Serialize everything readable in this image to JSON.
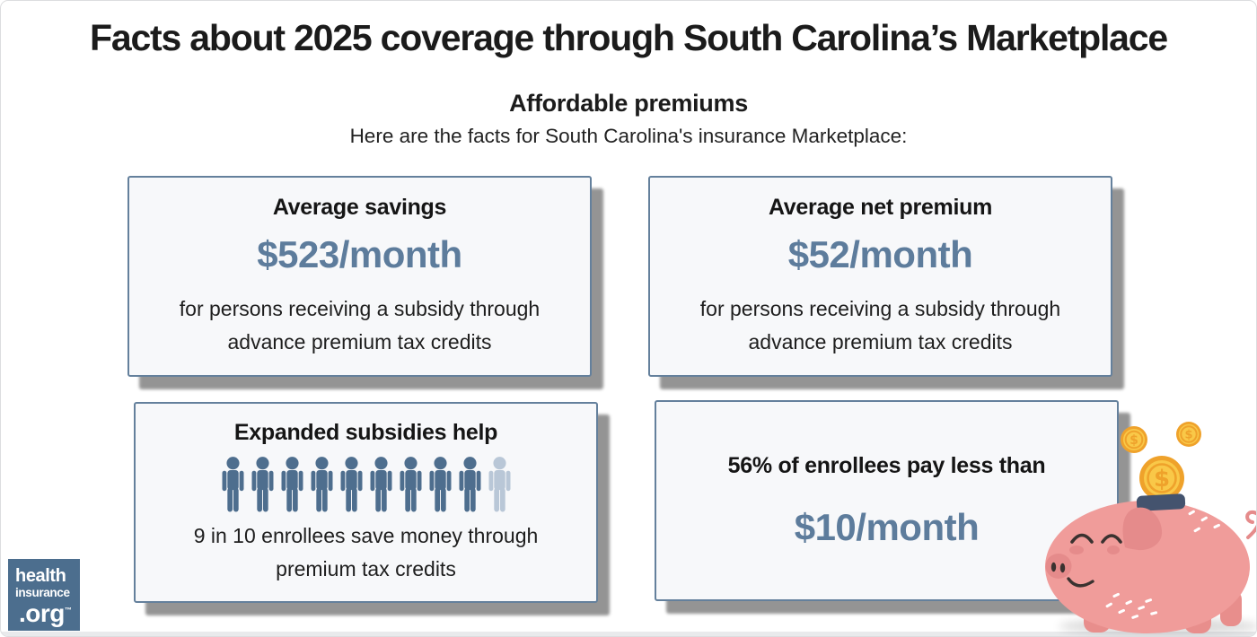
{
  "header": {
    "title": "Facts about 2025 coverage through South Carolina’s Marketplace",
    "subtitle": "Affordable premiums",
    "intro": "Here are the facts for South Carolina's insurance Marketplace:"
  },
  "cards": [
    {
      "id": "average-savings",
      "title": "Average savings",
      "value": "$523/month",
      "description": "for persons receiving a subsidy through advance premium tax credits"
    },
    {
      "id": "average-net-premium",
      "title": "Average net premium",
      "value": "$52/month",
      "description": "for persons receiving a subsidy through advance premium tax credits"
    },
    {
      "id": "expanded-subsidies",
      "title": "Expanded subsidies help",
      "description": "9 in 10 enrollees save money through premium tax credits",
      "pictogram": {
        "total": 10,
        "highlighted": 9
      }
    },
    {
      "id": "pay-less-than",
      "title": "56% of enrollees pay less than",
      "value": "$10/month"
    }
  ],
  "logo": {
    "line1": "health",
    "line2": "insurance",
    "line3": ".org",
    "trademark": "™"
  },
  "illustration": {
    "name": "piggy-bank-with-coins",
    "coin_symbol": "$"
  },
  "colors": {
    "accent_blue": "#5d7c9c",
    "card_border": "#64809c",
    "card_bg": "#f7f8fa",
    "person_dark": "#4e6e8e",
    "person_light": "#b9c7d7",
    "logo_bg": "#4c6e8e",
    "pig_body": "#f09c9a",
    "pig_dark": "#e58b8b",
    "pig_line": "#3a3230",
    "coin_orange": "#efa22b",
    "coin_yellow": "#f9c848",
    "slot_navy": "#44536e"
  }
}
